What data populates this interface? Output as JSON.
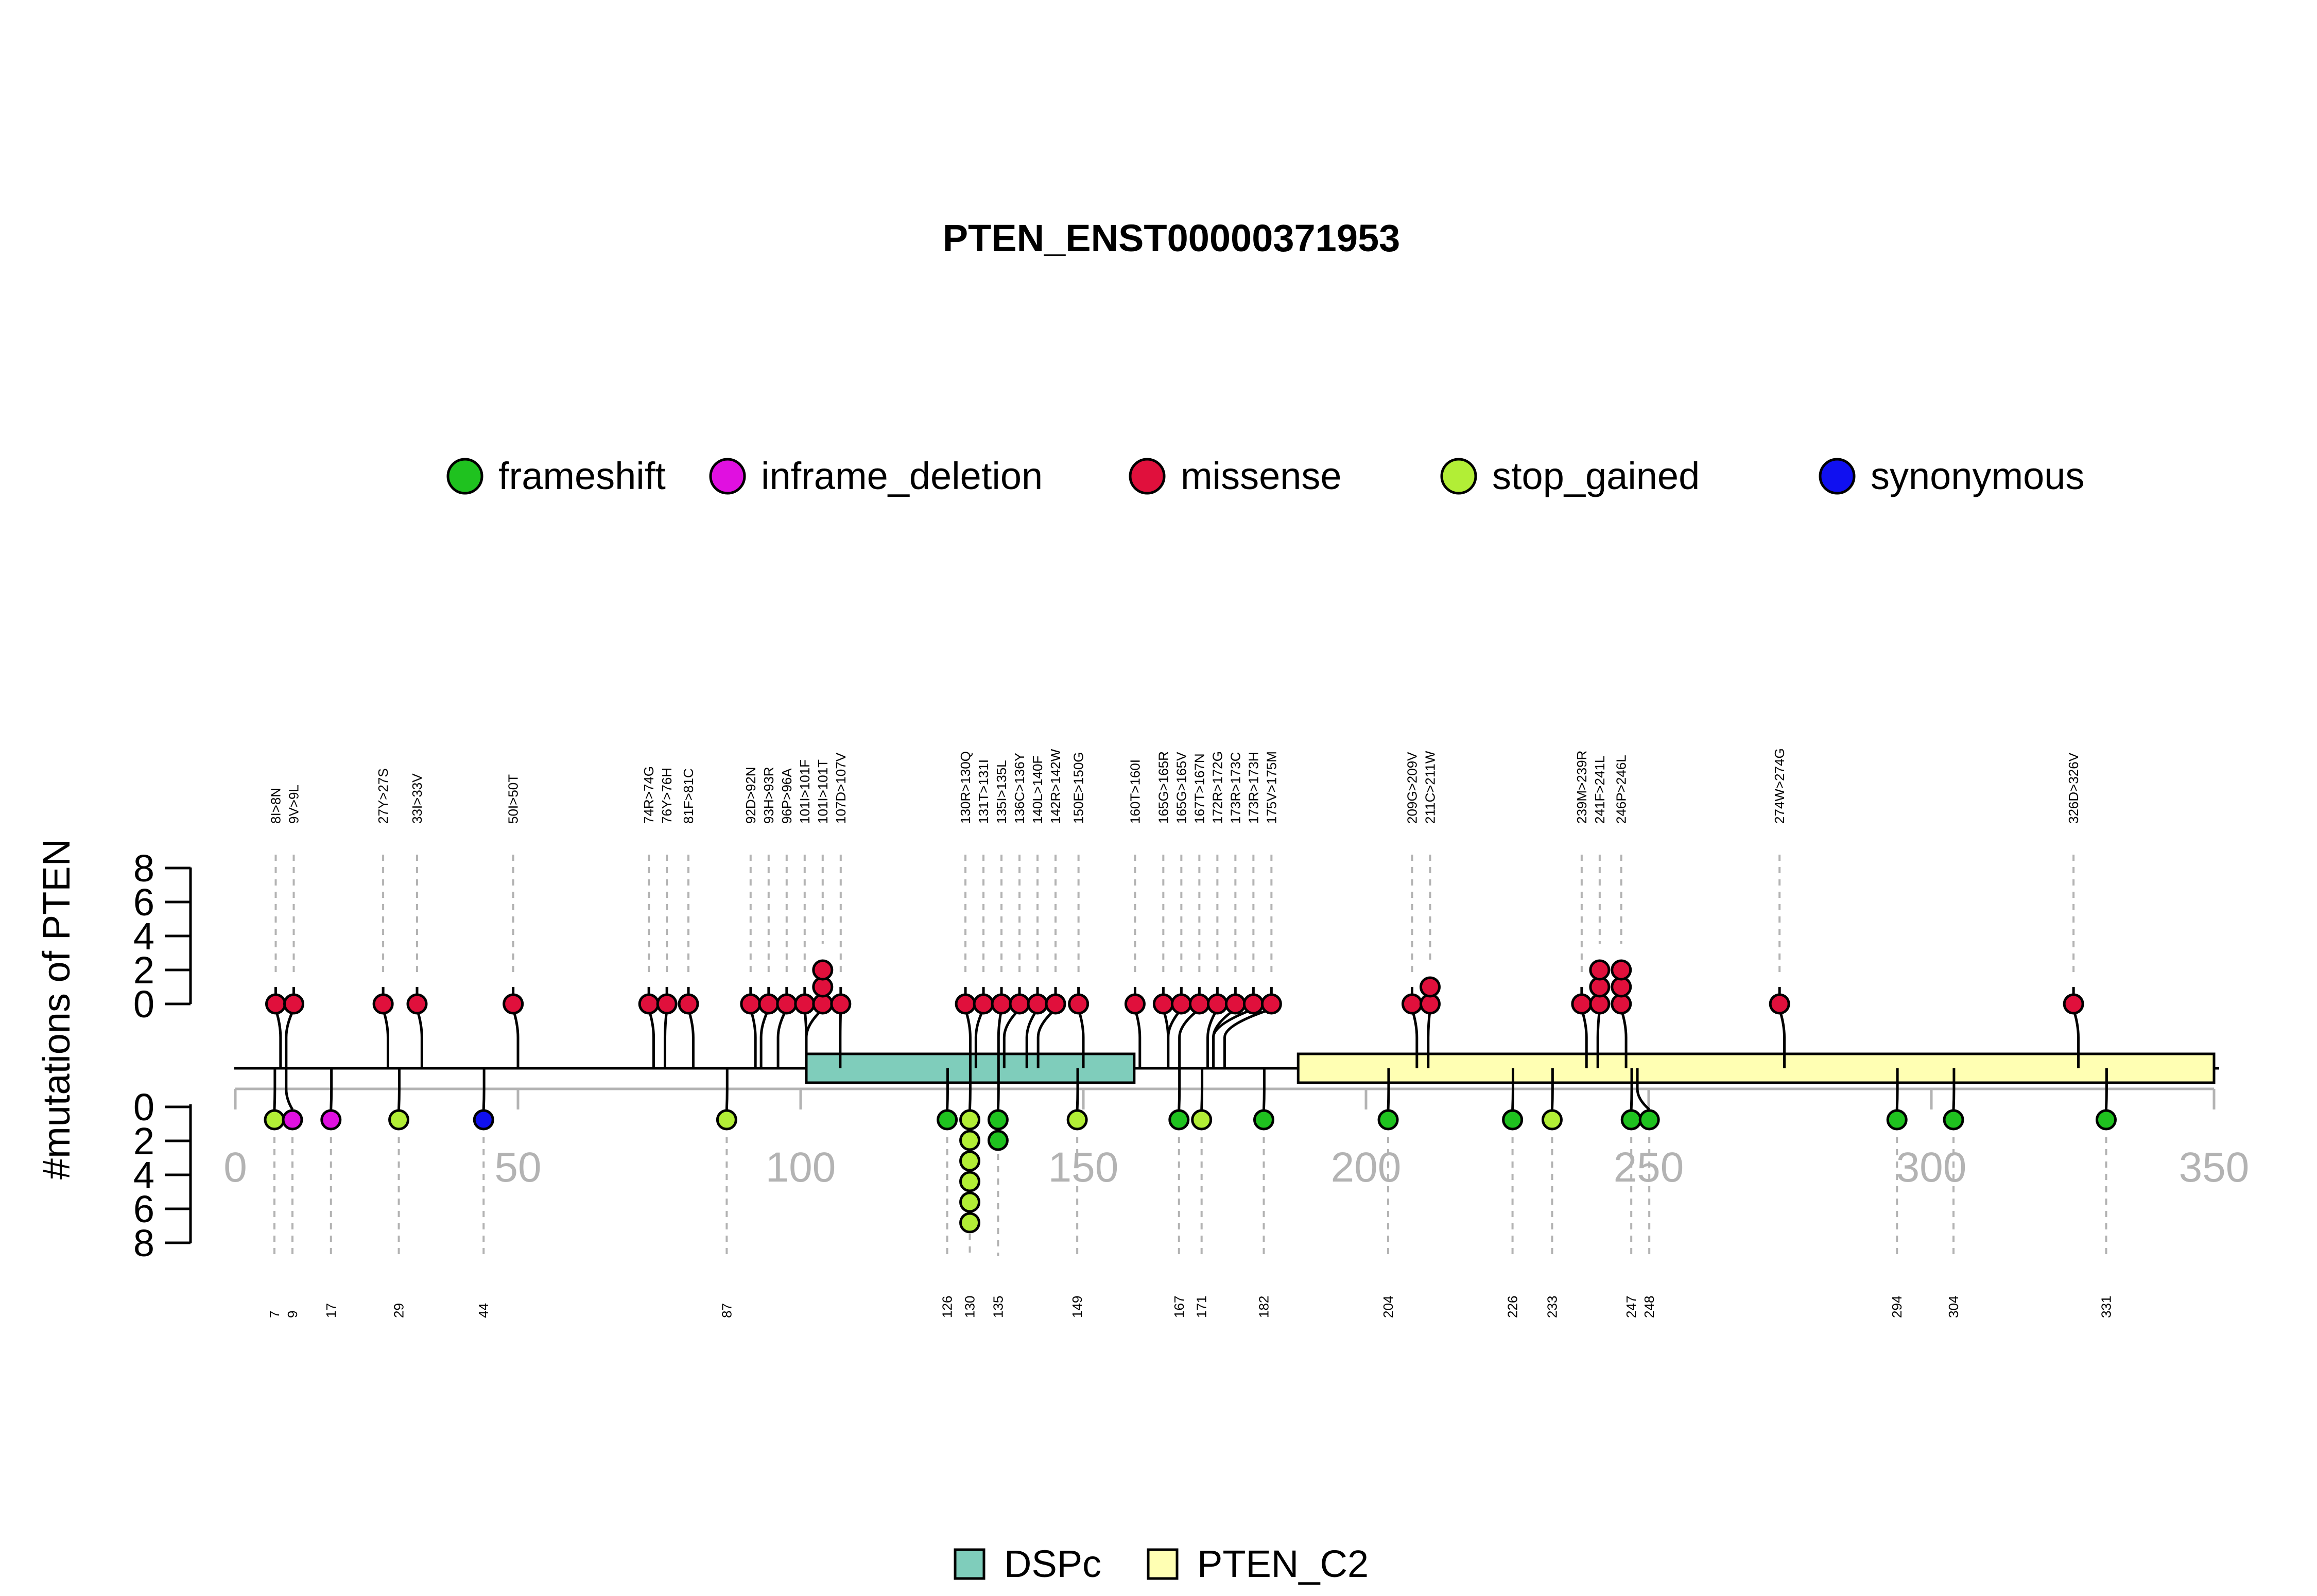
{
  "chart_data": {
    "type": "lollipop",
    "title": "PTEN_ENST00000371953",
    "ylabel": "#mutations of PTEN",
    "xlim": [
      0,
      350
    ],
    "x_ticks": [
      0,
      50,
      100,
      150,
      200,
      250,
      300,
      350
    ],
    "y_ticks": [
      0,
      2,
      4,
      6,
      8
    ],
    "ylim": [
      0,
      8
    ],
    "legend": [
      {
        "name": "frameshift",
        "color": "#1fc21f"
      },
      {
        "name": "inframe_deletion",
        "color": "#e010e0"
      },
      {
        "name": "missense",
        "color": "#e0103c"
      },
      {
        "name": "stop_gained",
        "color": "#b2ee36"
      },
      {
        "name": "synonymous",
        "color": "#1010f0"
      }
    ],
    "domains": [
      {
        "name": "DSPc",
        "start": 101,
        "end": 159,
        "color": "#7fcdbb"
      },
      {
        "name": "PTEN_C2",
        "start": 188,
        "end": 350,
        "color": "#ffffb3"
      }
    ],
    "upper_mutations": [
      {
        "pos": 8,
        "label": "8I>8N",
        "count": 1,
        "type": "missense"
      },
      {
        "pos": 9,
        "label": "9V>9L",
        "count": 1,
        "type": "missense"
      },
      {
        "pos": 27,
        "label": "27Y>27S",
        "count": 1,
        "type": "missense"
      },
      {
        "pos": 33,
        "label": "33I>33V",
        "count": 1,
        "type": "missense"
      },
      {
        "pos": 50,
        "label": "50I>50T",
        "count": 1,
        "type": "missense"
      },
      {
        "pos": 74,
        "label": "74R>74G",
        "count": 1,
        "type": "missense"
      },
      {
        "pos": 76,
        "label": "76Y>76H",
        "count": 1,
        "type": "missense"
      },
      {
        "pos": 81,
        "label": "81F>81C",
        "count": 1,
        "type": "missense"
      },
      {
        "pos": 92,
        "label": "92D>92N",
        "count": 1,
        "type": "missense"
      },
      {
        "pos": 93,
        "label": "93H>93R",
        "count": 1,
        "type": "missense"
      },
      {
        "pos": 96,
        "label": "96P>96A",
        "count": 1,
        "type": "missense"
      },
      {
        "pos": 101,
        "label": "101I>101F",
        "count": 1,
        "type": "missense"
      },
      {
        "pos": 101,
        "label": "101I>101T",
        "count": 3,
        "type": "missense"
      },
      {
        "pos": 107,
        "label": "107D>107V",
        "count": 1,
        "type": "missense"
      },
      {
        "pos": 130,
        "label": "130R>130Q",
        "count": 1,
        "type": "missense"
      },
      {
        "pos": 131,
        "label": "131T>131I",
        "count": 1,
        "type": "missense"
      },
      {
        "pos": 135,
        "label": "135I>135L",
        "count": 1,
        "type": "missense"
      },
      {
        "pos": 136,
        "label": "136C>136Y",
        "count": 1,
        "type": "missense"
      },
      {
        "pos": 140,
        "label": "140L>140F",
        "count": 1,
        "type": "missense"
      },
      {
        "pos": 142,
        "label": "142R>142W",
        "count": 1,
        "type": "missense"
      },
      {
        "pos": 150,
        "label": "150E>150G",
        "count": 1,
        "type": "missense"
      },
      {
        "pos": 160,
        "label": "160T>160I",
        "count": 1,
        "type": "missense"
      },
      {
        "pos": 165,
        "label": "165G>165R",
        "count": 1,
        "type": "missense"
      },
      {
        "pos": 165,
        "label": "165G>165V",
        "count": 1,
        "type": "missense"
      },
      {
        "pos": 167,
        "label": "167T>167N",
        "count": 1,
        "type": "missense"
      },
      {
        "pos": 172,
        "label": "172R>172G",
        "count": 1,
        "type": "missense"
      },
      {
        "pos": 173,
        "label": "173R>173C",
        "count": 1,
        "type": "missense"
      },
      {
        "pos": 173,
        "label": "173R>173H",
        "count": 1,
        "type": "missense"
      },
      {
        "pos": 175,
        "label": "175V>175M",
        "count": 1,
        "type": "missense"
      },
      {
        "pos": 209,
        "label": "209G>209V",
        "count": 1,
        "type": "missense"
      },
      {
        "pos": 211,
        "label": "211C>211W",
        "count": 2,
        "type": "missense"
      },
      {
        "pos": 239,
        "label": "239M>239R",
        "count": 1,
        "type": "missense"
      },
      {
        "pos": 241,
        "label": "241F>241L",
        "count": 3,
        "type": "missense"
      },
      {
        "pos": 246,
        "label": "246P>246L",
        "count": 3,
        "type": "missense"
      },
      {
        "pos": 274,
        "label": "274W>274G",
        "count": 1,
        "type": "missense"
      },
      {
        "pos": 326,
        "label": "326D>326V",
        "count": 1,
        "type": "missense"
      }
    ],
    "lower_mutations": [
      {
        "pos": 7,
        "label": "7",
        "count": 1,
        "type": "stop_gained"
      },
      {
        "pos": 9,
        "label": "9",
        "count": 1,
        "type": "inframe_deletion"
      },
      {
        "pos": 17,
        "label": "17",
        "count": 1,
        "type": "inframe_deletion"
      },
      {
        "pos": 29,
        "label": "29",
        "count": 1,
        "type": "stop_gained"
      },
      {
        "pos": 44,
        "label": "44",
        "count": 1,
        "type": "synonymous"
      },
      {
        "pos": 87,
        "label": "87",
        "count": 1,
        "type": "stop_gained"
      },
      {
        "pos": 126,
        "label": "126",
        "count": 1,
        "type": "frameshift"
      },
      {
        "pos": 130,
        "label": "130",
        "count": 6,
        "type": "stop_gained"
      },
      {
        "pos": 135,
        "label": "135",
        "count": 2,
        "type": "frameshift"
      },
      {
        "pos": 149,
        "label": "149",
        "count": 1,
        "type": "stop_gained"
      },
      {
        "pos": 167,
        "label": "167",
        "count": 1,
        "type": "frameshift"
      },
      {
        "pos": 171,
        "label": "171",
        "count": 1,
        "type": "stop_gained"
      },
      {
        "pos": 182,
        "label": "182",
        "count": 1,
        "type": "frameshift"
      },
      {
        "pos": 204,
        "label": "204",
        "count": 1,
        "type": "frameshift"
      },
      {
        "pos": 226,
        "label": "226",
        "count": 1,
        "type": "frameshift"
      },
      {
        "pos": 233,
        "label": "233",
        "count": 1,
        "type": "stop_gained"
      },
      {
        "pos": 247,
        "label": "247",
        "count": 1,
        "type": "frameshift"
      },
      {
        "pos": 248,
        "label": "248",
        "count": 1,
        "type": "frameshift"
      },
      {
        "pos": 294,
        "label": "294",
        "count": 1,
        "type": "frameshift"
      },
      {
        "pos": 304,
        "label": "304",
        "count": 1,
        "type": "frameshift"
      },
      {
        "pos": 331,
        "label": "331",
        "count": 1,
        "type": "frameshift"
      }
    ]
  }
}
